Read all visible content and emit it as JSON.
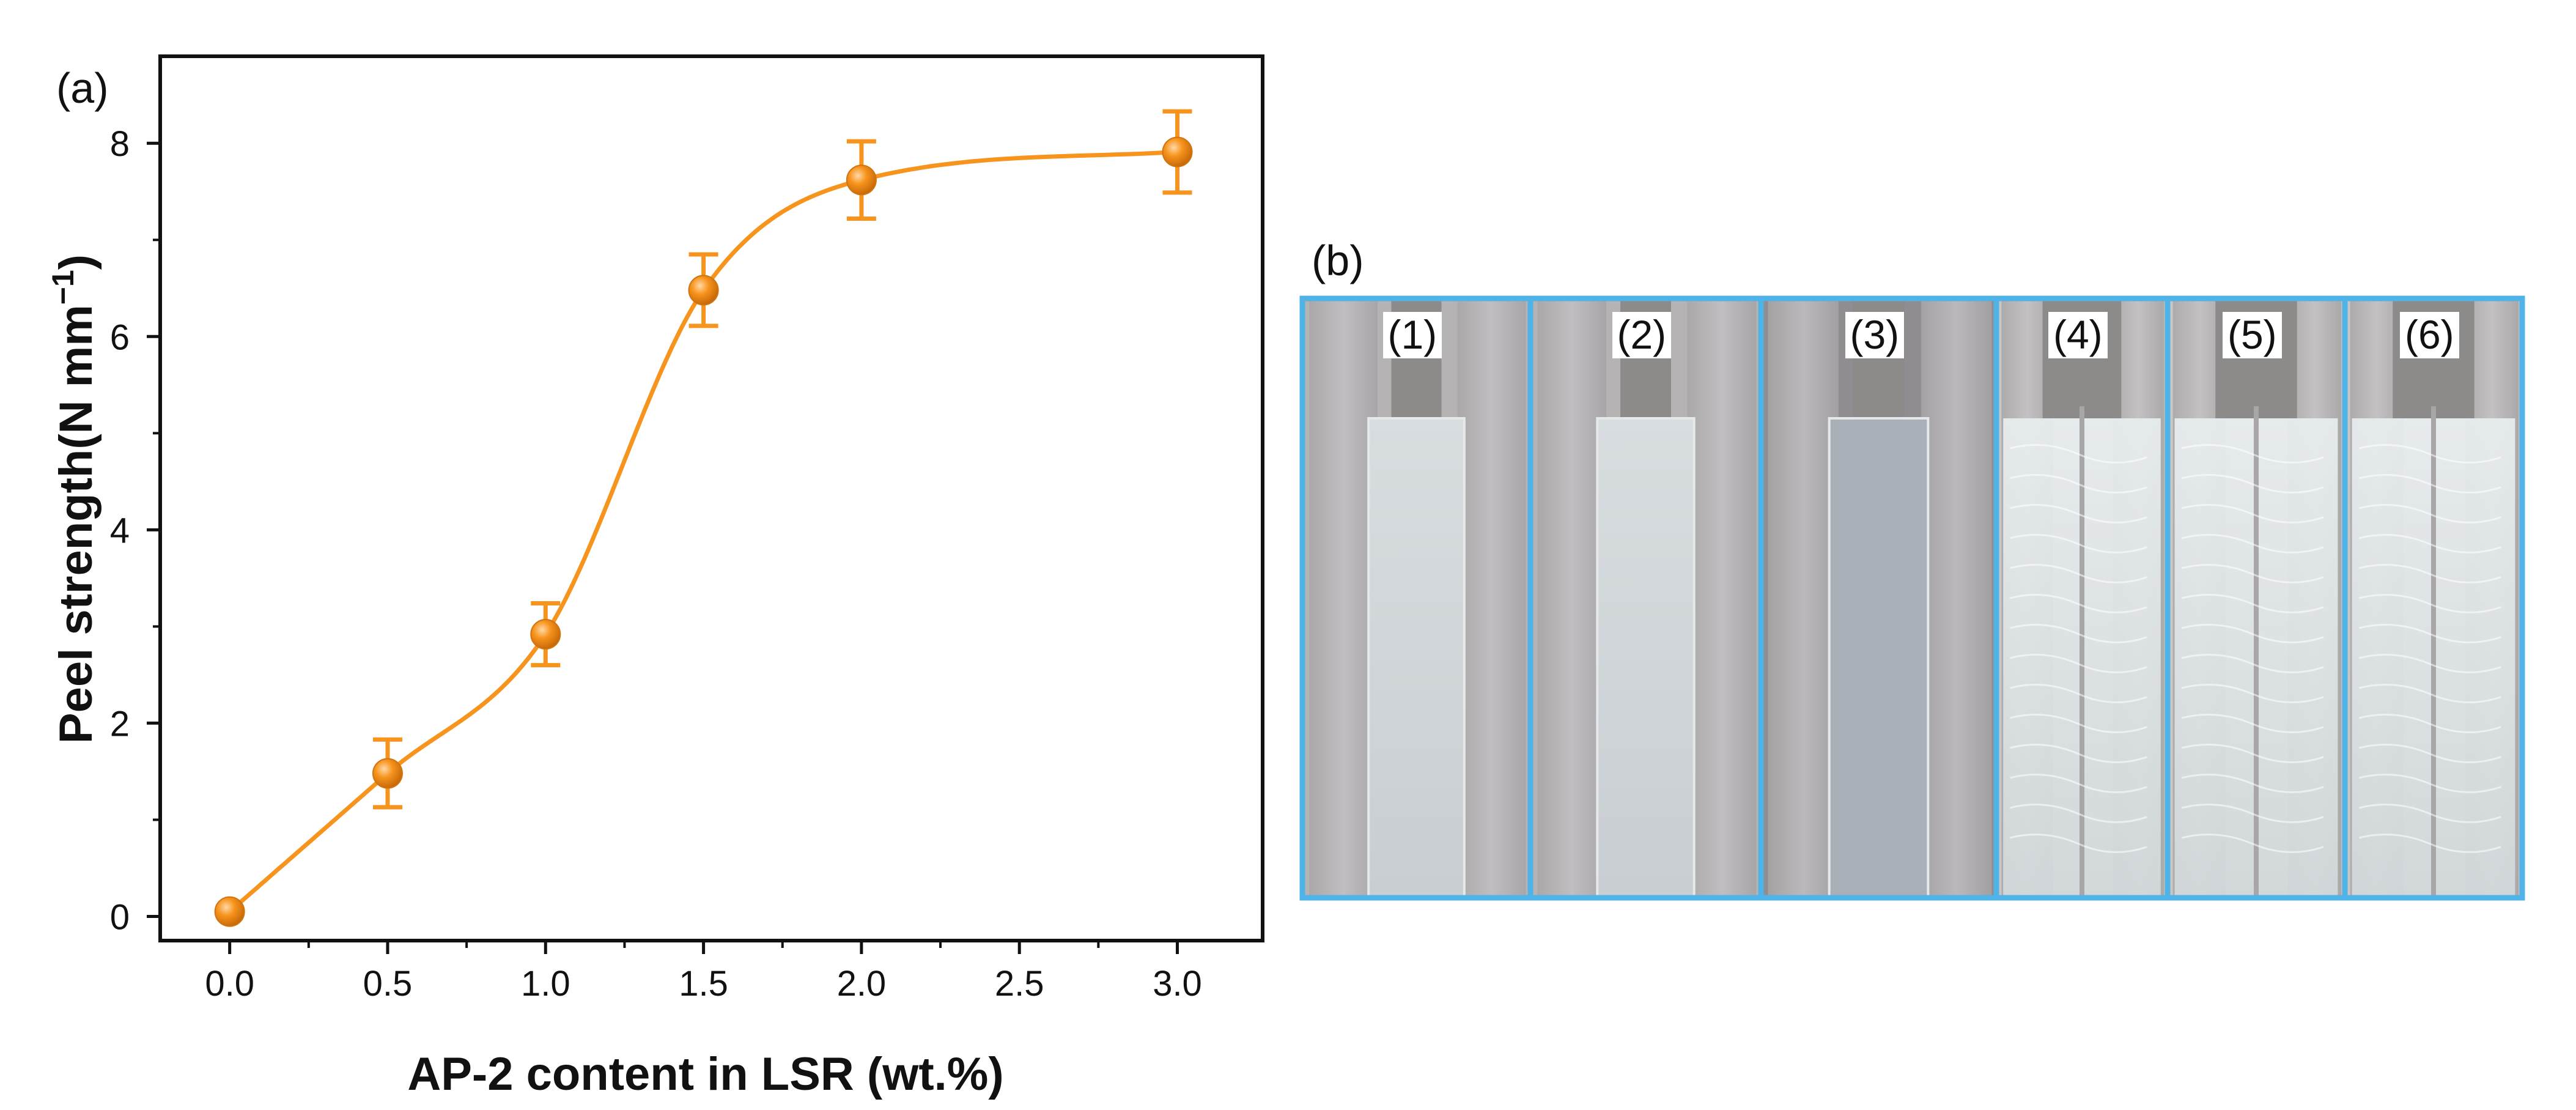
{
  "panels": {
    "a_label": "(a)",
    "b_label": "(b)"
  },
  "chart_data": {
    "type": "line",
    "title": "",
    "xlabel": "AP-2 content in LSR (wt.%)",
    "ylabel": "Peel strength(N mm",
    "ylabel_sup": "−1",
    "ylabel_tail": ")",
    "xlim": [
      -0.22,
      3.27
    ],
    "ylim": [
      -0.25,
      8.9
    ],
    "x_ticks": [
      0.0,
      0.5,
      1.0,
      1.5,
      2.0,
      2.5,
      3.0
    ],
    "x_tick_labels": [
      "0.0",
      "0.5",
      "1.0",
      "1.5",
      "2.0",
      "2.5",
      "3.0"
    ],
    "y_ticks": [
      0,
      2,
      4,
      6,
      8
    ],
    "y_tick_labels": [
      "0",
      "2",
      "4",
      "6",
      "8"
    ],
    "grid": false,
    "series": [
      {
        "x": [
          0.0,
          0.5,
          1.0,
          1.5,
          2.0,
          3.0
        ],
        "values": [
          0.05,
          1.48,
          2.92,
          6.48,
          7.62,
          7.91
        ],
        "errors": [
          0.05,
          0.35,
          0.32,
          0.37,
          0.4,
          0.42
        ],
        "color": "#f7941d"
      }
    ]
  },
  "photos": {
    "border_color": "#4fb3e8",
    "items": [
      {
        "label": "(1)"
      },
      {
        "label": "(2)"
      },
      {
        "label": "(3)"
      },
      {
        "label": "(4)"
      },
      {
        "label": "(5)"
      },
      {
        "label": "(6)"
      }
    ]
  }
}
